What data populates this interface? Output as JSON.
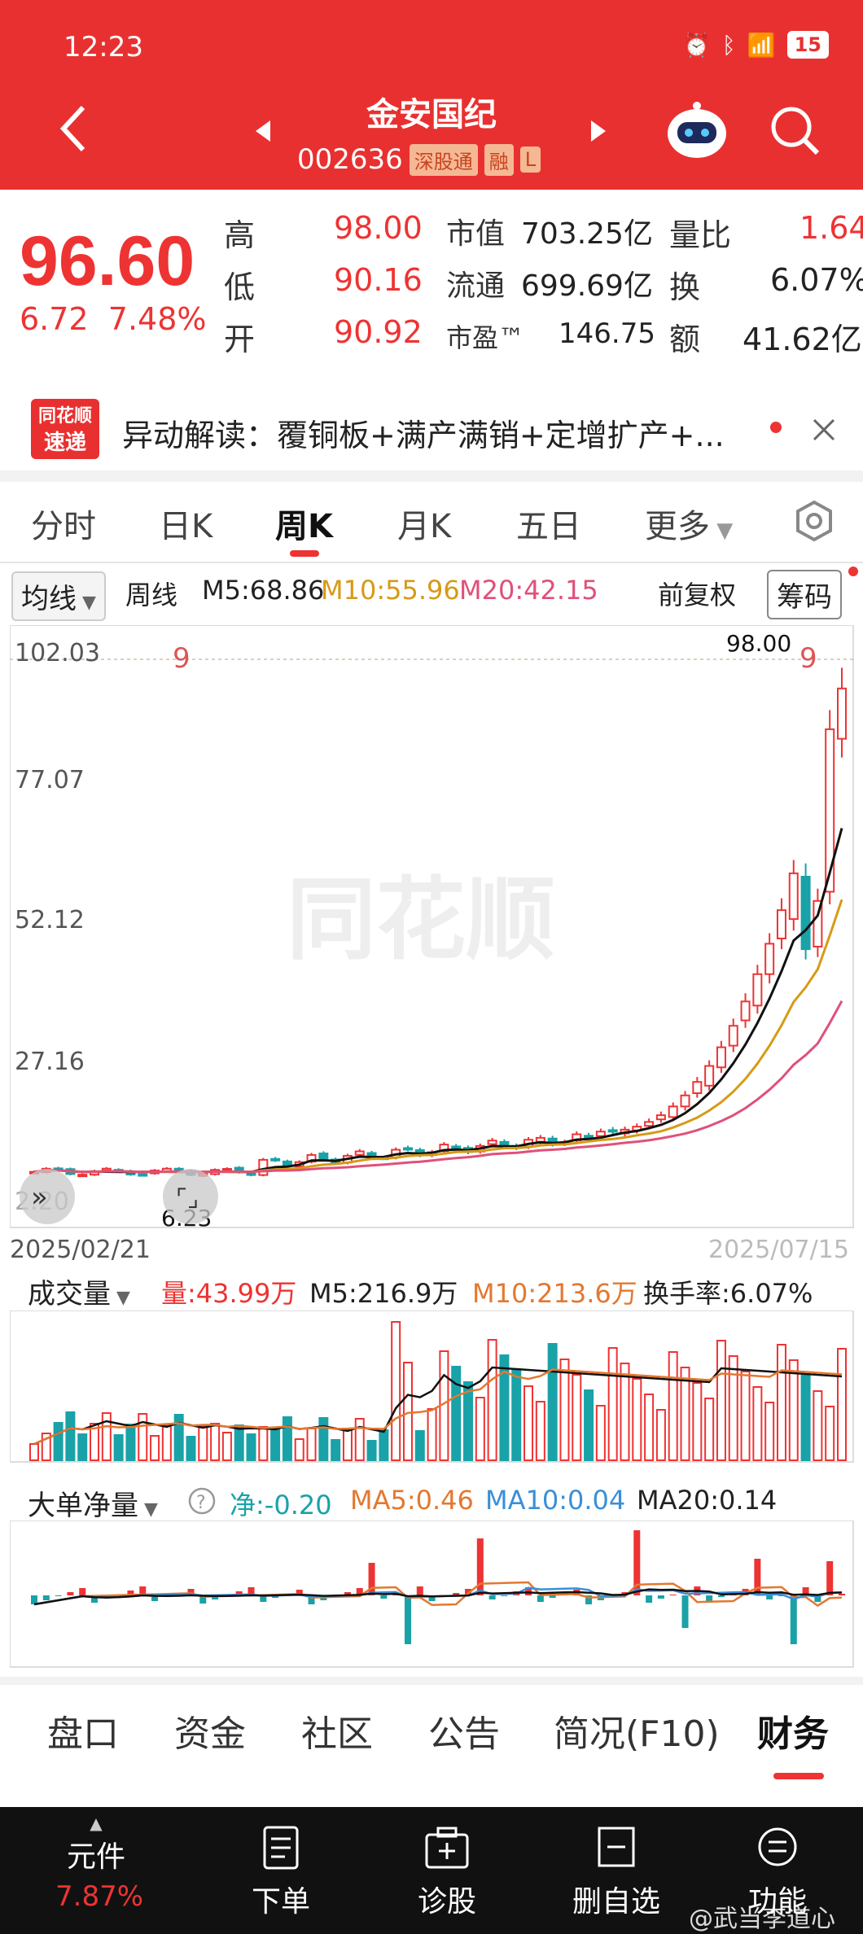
{
  "status": {
    "time": "12:23",
    "battery": "15"
  },
  "header": {
    "title": "金安国纪",
    "code": "002636",
    "tags": [
      "深股通",
      "融",
      "L"
    ]
  },
  "quote": {
    "price": "96.60",
    "change": "6.72",
    "change_pct": "7.48%",
    "high_label": "高",
    "high": "98.00",
    "low_label": "低",
    "low": "90.16",
    "open_label": "开",
    "open": "90.92",
    "mcap_label": "市值",
    "mcap": "703.25亿",
    "float_label": "流通",
    "float": "699.69亿",
    "pe_label": "市盈™",
    "pe": "146.75",
    "vr_label": "量比",
    "vr": "1.64",
    "turn_label": "换",
    "turn": "6.07%",
    "amt_label": "额",
    "amt": "41.62亿"
  },
  "news": {
    "source_line1": "同花顺",
    "source_line2": "速递",
    "text": "异动解读：覆铜板+满产满销+定增扩产+..."
  },
  "tabs": [
    "分时",
    "日K",
    "周K",
    "月K",
    "五日",
    "更多"
  ],
  "ma": {
    "dropdown": "均线",
    "period": "周线",
    "m5": "M5:68.86",
    "m10": "M10:55.96",
    "m20": "M20:42.15",
    "adjust": "前复权",
    "chips": "筹码"
  },
  "kline": {
    "axis": [
      "102.03",
      "77.07",
      "52.12",
      "27.16",
      "2.20"
    ],
    "max_label": "98.00",
    "min_label": "6.23",
    "start_date": "2025/02/21",
    "end_date": "2025/07/15",
    "watermark": "同花顺",
    "flag": "9"
  },
  "volume": {
    "dropdown": "成交量",
    "vol": "量:43.99万",
    "m5": "M5:216.9万",
    "m10": "M10:213.6万",
    "turn": "换手率:6.07%"
  },
  "bigorder": {
    "dropdown": "大单净量",
    "net": "净:-0.20",
    "ma5": "MA5:0.46",
    "ma10": "MA10:0.04",
    "ma20": "MA20:0.14"
  },
  "bottom_tabs": [
    "盘口",
    "资金",
    "社区",
    "公告",
    "简况(F10)",
    "财务"
  ],
  "nav": {
    "stock": "元件",
    "stock_pct": "7.87%",
    "items": [
      "下单",
      "诊股",
      "删自选",
      "功能"
    ],
    "watermark": "@武当李道心"
  },
  "colors": {
    "red": "#e93030",
    "up": "#e33",
    "down": "#19a2a8"
  }
}
